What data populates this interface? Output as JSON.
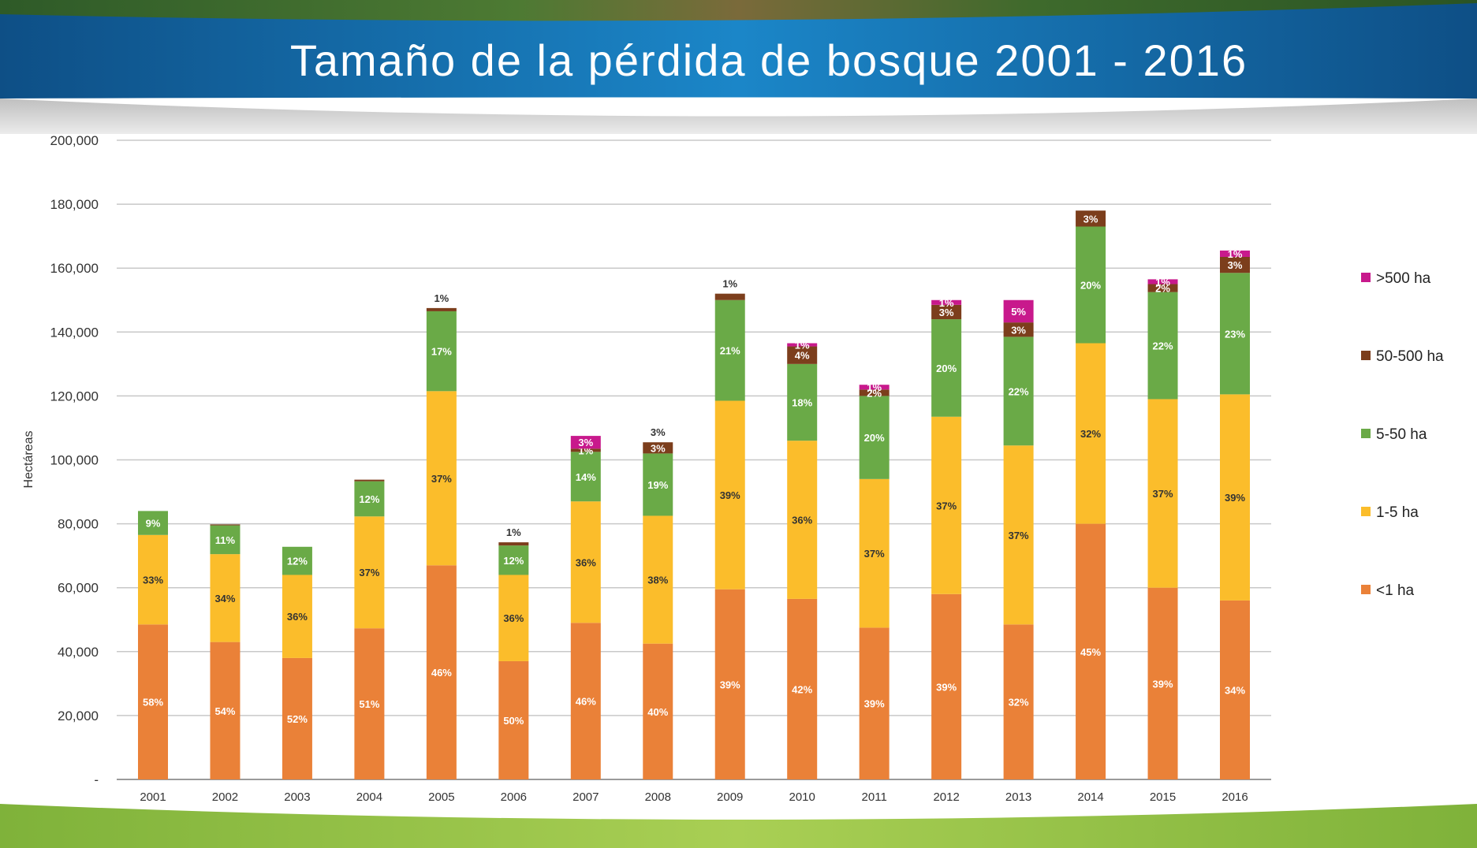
{
  "header": {
    "title": "Tamaño de la pérdida de bosque 2001 - 2016"
  },
  "chart_data": {
    "type": "bar",
    "stacked": true,
    "title": "Tamaño de la pérdida de bosque 2001 - 2016",
    "xlabel": "",
    "ylabel": "Hectáreas",
    "ylim": [
      0,
      200000
    ],
    "yticks": [
      0,
      20000,
      40000,
      60000,
      80000,
      100000,
      120000,
      140000,
      160000,
      180000,
      200000
    ],
    "ytick_labels": [
      "-",
      "20,000",
      "40,000",
      "60,000",
      "80,000",
      "100,000",
      "120,000",
      "140,000",
      "160,000",
      "180,000",
      "200,000"
    ],
    "grid": true,
    "legend_position": "right",
    "categories": [
      "2001",
      "2002",
      "2003",
      "2004",
      "2005",
      "2006",
      "2007",
      "2008",
      "2009",
      "2010",
      "2011",
      "2012",
      "2013",
      "2014",
      "2015",
      "2016"
    ],
    "series": [
      {
        "name": "<1 ha",
        "color": "#ea8138",
        "label_color": "#ffffff",
        "values": [
          48500,
          43000,
          38000,
          47300,
          67000,
          37000,
          49000,
          42500,
          59500,
          56500,
          47500,
          58000,
          48500,
          80000,
          60000,
          56000
        ],
        "labels": [
          "58%",
          "54%",
          "52%",
          "51%",
          "46%",
          "50%",
          "46%",
          "40%",
          "39%",
          "42%",
          "39%",
          "39%",
          "32%",
          "45%",
          "39%",
          "34%"
        ]
      },
      {
        "name": "1-5 ha",
        "color": "#fbbd2b",
        "label_color": "#333333",
        "values": [
          28000,
          27500,
          26000,
          35000,
          54500,
          27000,
          38000,
          40000,
          59000,
          49500,
          46500,
          55500,
          56000,
          56500,
          59000,
          64500
        ],
        "labels": [
          "33%",
          "34%",
          "36%",
          "37%",
          "37%",
          "36%",
          "36%",
          "38%",
          "39%",
          "36%",
          "37%",
          "37%",
          "37%",
          "32%",
          "37%",
          "39%"
        ]
      },
      {
        "name": "5-50 ha",
        "color": "#6aaa47",
        "label_color": "#ffffff",
        "values": [
          7500,
          9000,
          8800,
          11000,
          25000,
          9200,
          15500,
          19500,
          31500,
          24000,
          26000,
          30500,
          34000,
          36500,
          33500,
          38000
        ],
        "labels": [
          "9%",
          "11%",
          "12%",
          "12%",
          "17%",
          "12%",
          "14%",
          "19%",
          "21%",
          "18%",
          "20%",
          "20%",
          "22%",
          "20%",
          "22%",
          "23%"
        ]
      },
      {
        "name": "50-500 ha",
        "color": "#7c3e1c",
        "label_color": "#ffffff",
        "values": [
          0,
          300,
          0,
          500,
          1000,
          1000,
          1000,
          3500,
          2000,
          5500,
          2000,
          4500,
          4500,
          5000,
          2500,
          5000
        ],
        "labels": [
          "",
          "",
          "",
          "",
          "",
          "",
          "1%",
          "3%",
          "",
          "4%",
          "2%",
          "3%",
          "3%",
          "3%",
          "2%",
          "3%"
        ]
      },
      {
        "name": ">500 ha",
        "color": "#c8198c",
        "label_color": "#ffffff",
        "values": [
          0,
          0,
          0,
          0,
          0,
          0,
          4000,
          0,
          0,
          1000,
          1500,
          1500,
          7000,
          0,
          1500,
          2000
        ],
        "labels": [
          "",
          "",
          "",
          "",
          "",
          "",
          "3%",
          "",
          "",
          "1%",
          "1%",
          "1%",
          "5%",
          "",
          "1%",
          "1%"
        ]
      }
    ],
    "top_labels": [
      "",
      "",
      "",
      "",
      "1%",
      "1%",
      "",
      "3%",
      "1%",
      "",
      "",
      "",
      "",
      "",
      "",
      ""
    ]
  }
}
